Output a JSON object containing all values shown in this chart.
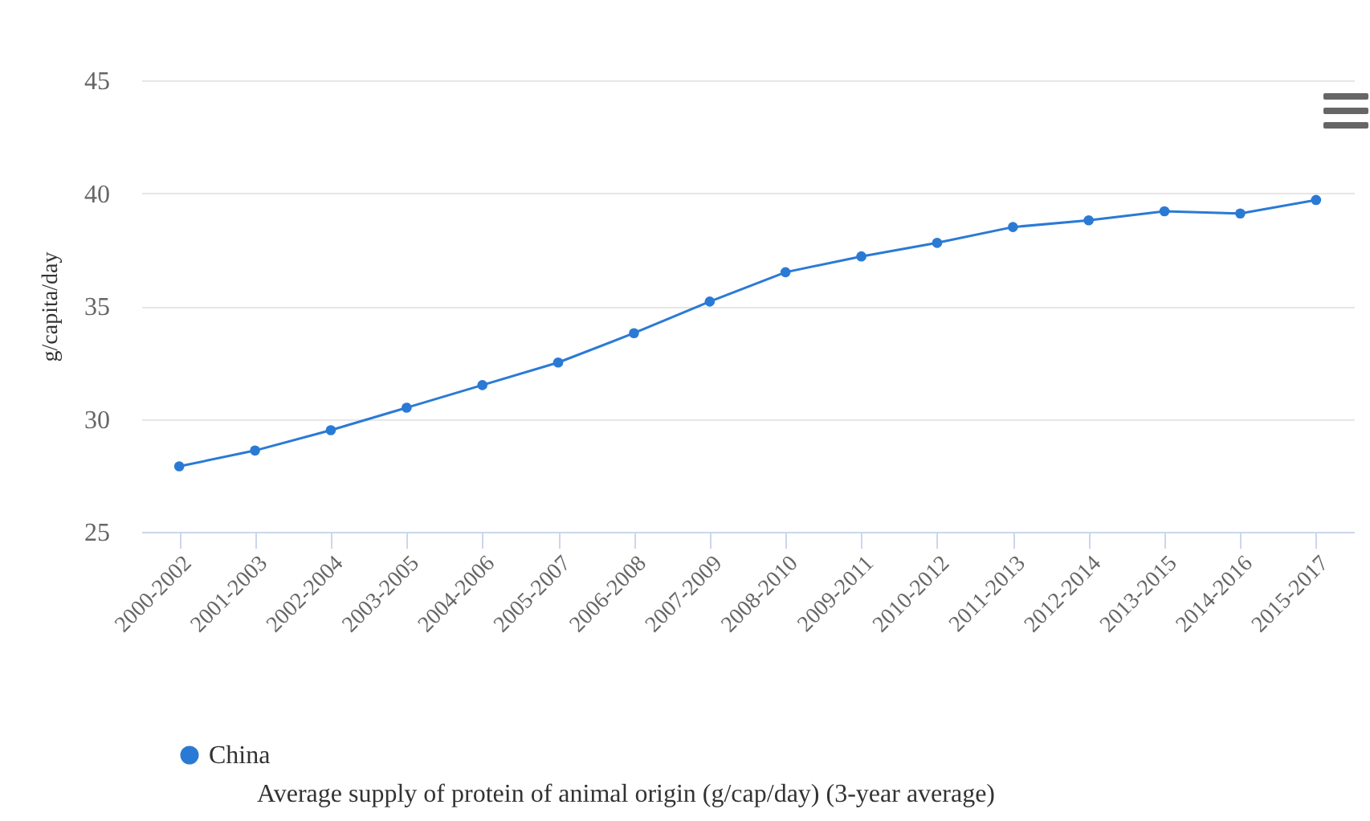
{
  "chart_data": {
    "type": "line",
    "ylabel": "g/capita/day",
    "categories": [
      "2000-2002",
      "2001-2003",
      "2002-2004",
      "2003-2005",
      "2004-2006",
      "2005-2007",
      "2006-2008",
      "2007-2009",
      "2008-2010",
      "2009-2011",
      "2010-2012",
      "2011-2013",
      "2012-2014",
      "2013-2015",
      "2014-2016",
      "2015-2017"
    ],
    "series": [
      {
        "name": "China",
        "color": "#2a7ad5",
        "values": [
          27.9,
          28.6,
          29.5,
          30.5,
          31.5,
          32.5,
          33.8,
          35.2,
          36.5,
          37.2,
          37.8,
          38.5,
          38.8,
          39.2,
          39.1,
          39.7
        ]
      }
    ],
    "ylim": [
      25,
      45
    ],
    "yticks": [
      25,
      30,
      35,
      40,
      45
    ],
    "grid": "y",
    "legend": "bottom left",
    "marker": "circle",
    "line_style": "solid",
    "annotations": [
      "Average supply of protein of animal origin (g/cap/day) (3-year average)"
    ]
  }
}
